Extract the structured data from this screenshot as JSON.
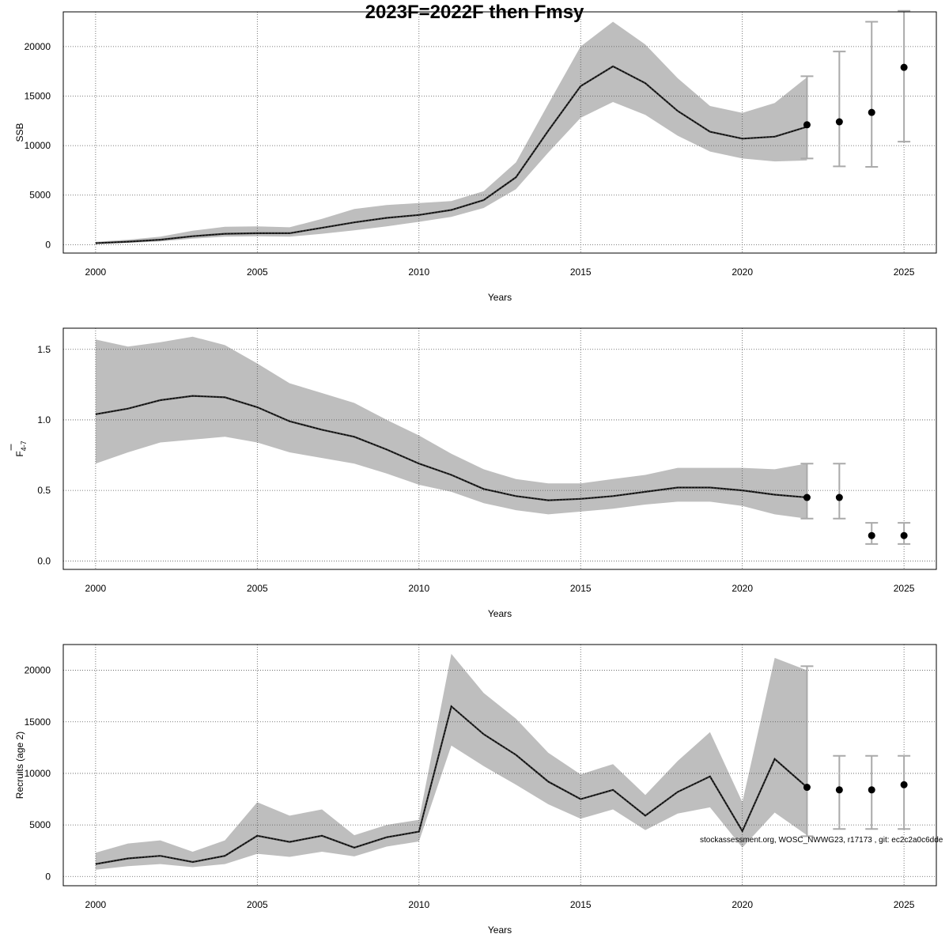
{
  "title": "2023F=2022F then Fmsy",
  "credit": "stockassessment.org, WOSC_NWWG23, r17173 , git: ec2c2a0c6dde",
  "colors": {
    "band": "#bebebe",
    "line": "#000000",
    "grid": "#555555",
    "errorbar": "#aaaaaa"
  },
  "chart_data": [
    {
      "type": "line",
      "name": "ssb-panel",
      "xlabel": "Years",
      "ylabel": "SSB",
      "ylabel_sub": "",
      "xlim": [
        1999.0,
        2026.0
      ],
      "ylim": [
        -850,
        23500
      ],
      "xticks": [
        2000,
        2005,
        2010,
        2015,
        2020,
        2025
      ],
      "yticks": [
        0,
        5000,
        10000,
        15000,
        20000
      ],
      "x": [
        2000,
        2001,
        2002,
        2003,
        2004,
        2005,
        2006,
        2007,
        2008,
        2009,
        2010,
        2011,
        2012,
        2013,
        2014,
        2015,
        2016,
        2017,
        2018,
        2019,
        2020,
        2021,
        2022
      ],
      "estimate": [
        150,
        300,
        500,
        850,
        1100,
        1150,
        1150,
        1700,
        2250,
        2700,
        3000,
        3500,
        4500,
        6800,
        11500,
        16000,
        18000,
        16300,
        13500,
        11400,
        10700,
        10900,
        11900
      ],
      "lower": [
        80,
        180,
        320,
        600,
        800,
        850,
        800,
        1100,
        1450,
        1850,
        2300,
        2800,
        3700,
        5600,
        9300,
        12800,
        14400,
        13100,
        11000,
        9400,
        8700,
        8400,
        8500
      ],
      "upper": [
        280,
        500,
        800,
        1400,
        1800,
        1850,
        1750,
        2600,
        3600,
        4000,
        4200,
        4400,
        5400,
        8300,
        14200,
        20000,
        22500,
        20200,
        16800,
        14000,
        13300,
        14300,
        16900
      ],
      "projections": [
        {
          "year": 2022,
          "value": 12100,
          "lower": 8700,
          "upper": 17000
        },
        {
          "year": 2023,
          "value": 12400,
          "lower": 7900,
          "upper": 19500
        },
        {
          "year": 2024,
          "value": 13350,
          "lower": 7850,
          "upper": 22500
        },
        {
          "year": 2025,
          "value": 17900,
          "lower": 10400,
          "upper": 23600
        }
      ]
    },
    {
      "type": "line",
      "name": "fbar-panel",
      "xlabel": "Years",
      "ylabel": "F",
      "ylabel_sub": "4-7",
      "xlim": [
        1999.0,
        2026.0
      ],
      "ylim": [
        -0.06,
        1.65
      ],
      "xticks": [
        2000,
        2005,
        2010,
        2015,
        2020,
        2025
      ],
      "yticks": [
        0.0,
        0.5,
        1.0,
        1.5
      ],
      "ytick_labels": [
        "0.0",
        "0.5",
        "1.0",
        "1.5"
      ],
      "x": [
        2000,
        2001,
        2002,
        2003,
        2004,
        2005,
        2006,
        2007,
        2008,
        2009,
        2010,
        2011,
        2012,
        2013,
        2014,
        2015,
        2016,
        2017,
        2018,
        2019,
        2020,
        2021,
        2022
      ],
      "estimate": [
        1.04,
        1.08,
        1.14,
        1.17,
        1.16,
        1.09,
        0.99,
        0.93,
        0.88,
        0.79,
        0.69,
        0.61,
        0.51,
        0.46,
        0.43,
        0.44,
        0.46,
        0.49,
        0.52,
        0.52,
        0.5,
        0.47,
        0.45
      ],
      "lower": [
        0.69,
        0.77,
        0.84,
        0.86,
        0.88,
        0.84,
        0.77,
        0.73,
        0.69,
        0.62,
        0.54,
        0.49,
        0.41,
        0.36,
        0.33,
        0.35,
        0.37,
        0.4,
        0.42,
        0.42,
        0.39,
        0.33,
        0.3
      ],
      "upper": [
        1.57,
        1.52,
        1.55,
        1.59,
        1.53,
        1.4,
        1.26,
        1.19,
        1.12,
        1.0,
        0.89,
        0.76,
        0.65,
        0.58,
        0.55,
        0.55,
        0.58,
        0.61,
        0.66,
        0.66,
        0.66,
        0.65,
        0.69
      ],
      "projections": [
        {
          "year": 2022,
          "value": 0.45,
          "lower": 0.3,
          "upper": 0.69
        },
        {
          "year": 2023,
          "value": 0.45,
          "lower": 0.3,
          "upper": 0.69
        },
        {
          "year": 2024,
          "value": 0.18,
          "lower": 0.12,
          "upper": 0.27
        },
        {
          "year": 2025,
          "value": 0.18,
          "lower": 0.12,
          "upper": 0.27
        }
      ]
    },
    {
      "type": "line",
      "name": "recruits-panel",
      "xlabel": "Years",
      "ylabel": "Recruits (age 2)",
      "ylabel_sub": "",
      "xlim": [
        1999.0,
        2026.0
      ],
      "ylim": [
        -900,
        22500
      ],
      "xticks": [
        2000,
        2005,
        2010,
        2015,
        2020,
        2025
      ],
      "yticks": [
        0,
        5000,
        10000,
        15000,
        20000
      ],
      "x": [
        2000,
        2001,
        2002,
        2003,
        2004,
        2005,
        2006,
        2007,
        2008,
        2009,
        2010,
        2011,
        2012,
        2013,
        2014,
        2015,
        2016,
        2017,
        2018,
        2019,
        2020,
        2021,
        2022
      ],
      "estimate": [
        1200,
        1750,
        2000,
        1400,
        2000,
        3950,
        3350,
        3950,
        2800,
        3800,
        4350,
        16500,
        13800,
        11800,
        9200,
        7500,
        8400,
        5900,
        8200,
        9700,
        4400,
        11400,
        8650
      ],
      "lower": [
        650,
        1000,
        1200,
        900,
        1200,
        2200,
        1900,
        2400,
        1950,
        2900,
        3400,
        12700,
        10700,
        8900,
        7000,
        5600,
        6500,
        4500,
        6100,
        6700,
        2800,
        6200,
        4000
      ],
      "upper": [
        2300,
        3200,
        3500,
        2400,
        3500,
        7200,
        5900,
        6500,
        4000,
        5000,
        5500,
        21600,
        17800,
        15300,
        12000,
        9900,
        10900,
        7900,
        11200,
        14000,
        7200,
        21200,
        20000
      ],
      "projections": [
        {
          "year": 2022,
          "value": 8650,
          "lower": 3900,
          "upper": 20400
        },
        {
          "year": 2023,
          "value": 8400,
          "lower": 4600,
          "upper": 11700
        },
        {
          "year": 2024,
          "value": 8400,
          "lower": 4600,
          "upper": 11700
        },
        {
          "year": 2025,
          "value": 8900,
          "lower": 4600,
          "upper": 11700
        }
      ]
    }
  ]
}
